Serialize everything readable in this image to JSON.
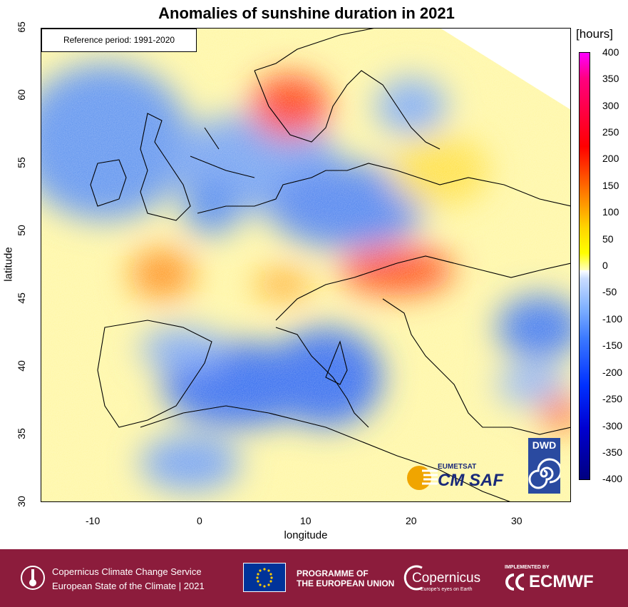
{
  "title": "Anomalies of sunshine duration in 2021",
  "reference_box": "Reference period: 1991-2020",
  "axes": {
    "xlabel": "longitude",
    "ylabel": "latitude",
    "x_ticks": [
      "-10",
      "0",
      "10",
      "20",
      "30"
    ],
    "y_ticks": [
      "65",
      "60",
      "55",
      "50",
      "45",
      "40",
      "35",
      "30"
    ],
    "x_range": [
      -15,
      35
    ],
    "y_range": [
      30,
      65
    ]
  },
  "legend": {
    "unit": "[hours]",
    "labels": [
      "400",
      "350",
      "300",
      "250",
      "200",
      "150",
      "100",
      "50",
      "0",
      "-50",
      "-100",
      "-150",
      "-200",
      "-250",
      "-300",
      "-350",
      "-400"
    ],
    "colors": {
      "max": "#ff00ff",
      "high": "#ff0000",
      "mid_high": "#ffd400",
      "zero": "#ffffff",
      "mid_low": "#3b78ff",
      "min": "#000080"
    }
  },
  "logos": {
    "eumetsat": "EUMETSAT",
    "cmsaf": "CM SAF",
    "dwd": "DWD"
  },
  "footer": {
    "c3s_line1": "Copernicus Climate Change Service",
    "c3s_line2": "European State of the Climate | 2021",
    "programme_line1": "PROGRAMME OF",
    "programme_line2": "THE EUROPEAN UNION",
    "copernicus": "Copernicus",
    "copernicus_tag": "Europe's eyes on Earth",
    "implemented_by": "IMPLEMENTED BY",
    "ecmwf": "ECMWF",
    "background_color": "#8c1c3c"
  }
}
